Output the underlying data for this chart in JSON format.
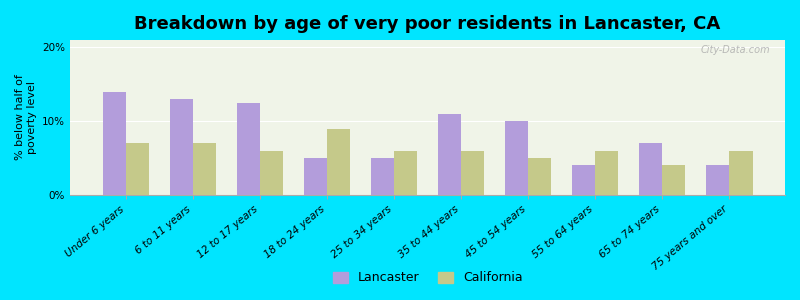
{
  "title": "Breakdown by age of very poor residents in Lancaster, CA",
  "ylabel": "% below half of\npoverty level",
  "categories": [
    "Under 6 years",
    "6 to 11 years",
    "12 to 17 years",
    "18 to 24 years",
    "25 to 34 years",
    "35 to 44 years",
    "45 to 54 years",
    "55 to 64 years",
    "65 to 74 years",
    "75 years and over"
  ],
  "lancaster_values": [
    14.0,
    13.0,
    12.5,
    5.0,
    5.0,
    11.0,
    10.0,
    4.0,
    7.0,
    4.0
  ],
  "california_values": [
    7.0,
    7.0,
    6.0,
    9.0,
    6.0,
    6.0,
    5.0,
    6.0,
    4.0,
    6.0
  ],
  "lancaster_color": "#b39ddb",
  "california_color": "#c5c98a",
  "background_color": "#00e5ff",
  "plot_bg_top": "#f0f4e8",
  "plot_bg_bottom": "#e8f0e8",
  "title_fontsize": 13,
  "ylabel_fontsize": 8,
  "tick_fontsize": 7.5,
  "legend_fontsize": 9,
  "ylim": [
    0,
    21
  ],
  "yticks": [
    0,
    10,
    20
  ],
  "ytick_labels": [
    "0%",
    "10%",
    "20%"
  ],
  "bar_width": 0.35,
  "watermark": "City-Data.com"
}
